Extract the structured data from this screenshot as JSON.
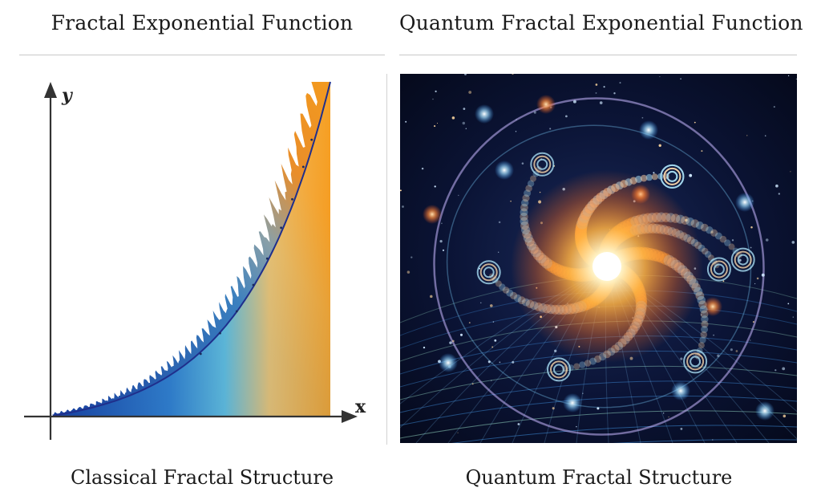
{
  "left_panel": {
    "title": "Fractal Exponential Function",
    "caption": "Classical Fractal Structure",
    "x_label": "x",
    "y_label": "y"
  },
  "right_panel": {
    "title": "Quantum Fractal Exponential Function",
    "caption": "Quantum Fractal Structure"
  },
  "colors": {
    "curve_blue": "#1f3f9c",
    "gradient_start": "#1a4fae",
    "gradient_mid": "#4cb4d8",
    "gradient_end": "#f7a22a",
    "fractal_orange": "#ea8a1c",
    "space_dark": "#050a1e"
  }
}
